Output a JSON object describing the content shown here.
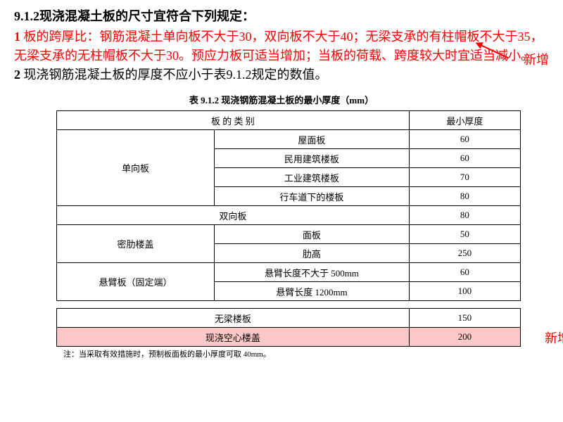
{
  "heading_num": "9.1.2",
  "heading_text": "现浇混凝土板的尺寸宜符合下列规定：",
  "clause1_num": "1",
  "clause1_text": " 板的跨厚比：钢筋混凝土单向板不大于30，双向板不大于40；无梁支承的有柱帽板不大于35，无梁支承的无柱帽板不大于30。预应力板可适当增加；当板的荷载、跨度较大时宜适当减小。",
  "clause2_num": "2",
  "clause2_text": " 现浇钢筋混凝土板的厚度不应小于表9.1.2规定的数值。",
  "new_label": "新增",
  "table_title": "表 9.1.2   现浇钢筋混凝土板的最小厚度（mm）",
  "hdr_category": "板  的  类  别",
  "hdr_min": "最小厚度",
  "rows1": {
    "single": "单向板",
    "single_sub": [
      "屋面板",
      "民用建筑楼板",
      "工业建筑楼板",
      "行车道下的楼板"
    ],
    "single_val": [
      "60",
      "60",
      "70",
      "80"
    ],
    "double": "双向板",
    "double_val": "80",
    "dense": "密肋楼盖",
    "dense_sub": [
      "面板",
      "肋高"
    ],
    "dense_val": [
      "50",
      "250"
    ],
    "cant": "悬臂板（固定端）",
    "cant_sub": [
      "悬臂长度不大于 500mm",
      "悬臂长度 1200mm"
    ],
    "cant_val": [
      "60",
      "100"
    ]
  },
  "rows2": {
    "beamless": "无梁楼板",
    "beamless_val": "150",
    "hollow": "现浇空心楼盖",
    "hollow_val": "200"
  },
  "note": "注：当采取有效措施时，预制板面板的最小厚度可取 40mm。",
  "colors": {
    "red": "#ff0000",
    "highlight": "#ffc8c8"
  }
}
